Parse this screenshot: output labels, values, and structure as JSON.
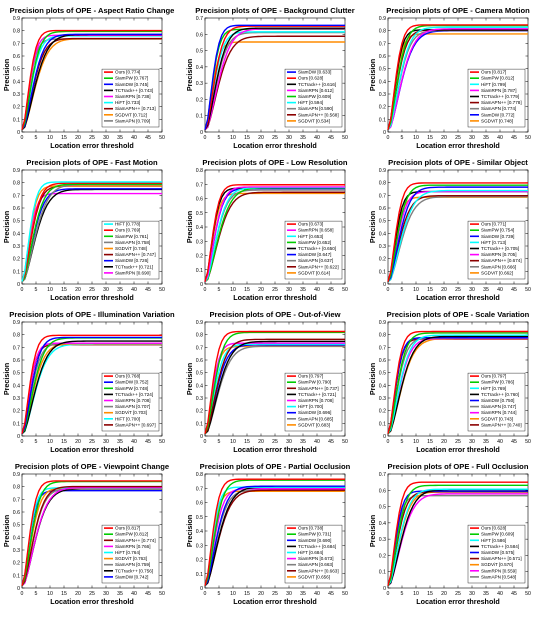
{
  "figure": {
    "x_ticks": [
      "0",
      "5",
      "10",
      "15",
      "20",
      "25",
      "30",
      "35",
      "40",
      "45",
      "50"
    ],
    "xlabel": "Location error threshold",
    "ylabel": "Precision",
    "colors": {
      "Ours": "#ff0000",
      "SiamPW": "#00cc00",
      "SiamDW": "#0000ff",
      "TCTrack++": "#000000",
      "SiamRPN": "#ff00ff",
      "HiFT": "#00ffff",
      "SiamAPN++": "#8b0000",
      "SGDViT": "#ff8c00",
      "SiamAPN": "#808080"
    }
  },
  "chart_data": [
    {
      "type": "line",
      "title": "Precision plots of OPE - Aspect Ratio Change",
      "ylim": [
        0,
        0.9
      ],
      "yticks": [
        "0",
        "0.1",
        "0.2",
        "0.3",
        "0.4",
        "0.5",
        "0.6",
        "0.7",
        "0.8",
        "0.9"
      ],
      "series": [
        {
          "name": "Ours",
          "label": "Ours [0.774]",
          "value": 0.774
        },
        {
          "name": "SiamPW",
          "label": "SiamPW [0.767]",
          "value": 0.767
        },
        {
          "name": "SiamDW",
          "label": "SiamDW [0.745]",
          "value": 0.745
        },
        {
          "name": "TCTrack++",
          "label": "TCTrack++ [0.743]",
          "value": 0.743
        },
        {
          "name": "SiamRPN",
          "label": "SiamRPN [0.738]",
          "value": 0.738
        },
        {
          "name": "HiFT",
          "label": "HiFT [0.733]",
          "value": 0.733
        },
        {
          "name": "SiamAPN++",
          "label": "SiamAPN++ [0.713]",
          "value": 0.713
        },
        {
          "name": "SGDViT",
          "label": "SGDViT [0.712]",
          "value": 0.712
        },
        {
          "name": "SiamAPN",
          "label": "SiamAPN [0.709]",
          "value": 0.709
        }
      ]
    },
    {
      "type": "line",
      "title": "Precision plots of OPE - Background Clutter",
      "ylim": [
        0,
        0.7
      ],
      "yticks": [
        "0",
        "0.1",
        "0.2",
        "0.3",
        "0.4",
        "0.5",
        "0.6",
        "0.7"
      ],
      "series": [
        {
          "name": "SiamDW",
          "label": "SiamDW [0.633]",
          "value": 0.633
        },
        {
          "name": "Ours",
          "label": "Ours [0.628]",
          "value": 0.628
        },
        {
          "name": "TCTrack++",
          "label": "TCTrack++ [0.616]",
          "value": 0.616
        },
        {
          "name": "SiamRPN",
          "label": "SiamRPN [0.612]",
          "value": 0.612
        },
        {
          "name": "SiamPW",
          "label": "SiamPW [0.609]",
          "value": 0.609
        },
        {
          "name": "HiFT",
          "label": "HiFT [0.594]",
          "value": 0.594
        },
        {
          "name": "SiamAPN",
          "label": "SiamAPN [0.590]",
          "value": 0.59
        },
        {
          "name": "SiamAPN++",
          "label": "SiamAPN++ [0.568]",
          "value": 0.568
        },
        {
          "name": "SGDViT",
          "label": "SGDViT [0.534]",
          "value": 0.534
        }
      ]
    },
    {
      "type": "line",
      "title": "Precision plots of OPE - Camera Motion",
      "ylim": [
        0,
        0.9
      ],
      "yticks": [
        "0",
        "0.1",
        "0.2",
        "0.3",
        "0.4",
        "0.5",
        "0.6",
        "0.7",
        "0.8",
        "0.9"
      ],
      "series": [
        {
          "name": "Ours",
          "label": "Ours [0.817]",
          "value": 0.817
        },
        {
          "name": "SiamPW",
          "label": "SiamPW [0.812]",
          "value": 0.812
        },
        {
          "name": "HiFT",
          "label": "HiFT [0.799]",
          "value": 0.799
        },
        {
          "name": "SiamRPN",
          "label": "SiamRPN [0.787]",
          "value": 0.787
        },
        {
          "name": "TCTrack++",
          "label": "TCTrack++ [0.779]",
          "value": 0.779
        },
        {
          "name": "SiamAPN++",
          "label": "SiamAPN++ [0.778]",
          "value": 0.778
        },
        {
          "name": "SiamAPN",
          "label": "SiamAPN [0.774]",
          "value": 0.774
        },
        {
          "name": "SiamDW",
          "label": "SiamDW [0.772]",
          "value": 0.772
        },
        {
          "name": "SGDViT",
          "label": "SGDViT [0.748]",
          "value": 0.748
        }
      ]
    },
    {
      "type": "line",
      "title": "Precision plots of OPE - Fast Motion",
      "ylim": [
        0,
        0.9
      ],
      "yticks": [
        "0",
        "0.1",
        "0.2",
        "0.3",
        "0.4",
        "0.5",
        "0.6",
        "0.7",
        "0.8",
        "0.9"
      ],
      "series": [
        {
          "name": "HiFT",
          "label": "HiFT [0.778]",
          "value": 0.778
        },
        {
          "name": "Ours",
          "label": "Ours [0.769]",
          "value": 0.769
        },
        {
          "name": "SiamPW",
          "label": "SiamPW [0.761]",
          "value": 0.761
        },
        {
          "name": "SiamAPN",
          "label": "SiamAPN [0.758]",
          "value": 0.758
        },
        {
          "name": "SGDViT",
          "label": "SGDViT [0.748]",
          "value": 0.748
        },
        {
          "name": "SiamAPN++",
          "label": "SiamAPN++ [0.747]",
          "value": 0.747
        },
        {
          "name": "SiamDW",
          "label": "SiamDW [0.726]",
          "value": 0.726
        },
        {
          "name": "TCTrack++",
          "label": "TCTrack++ [0.721]",
          "value": 0.721
        },
        {
          "name": "SiamRPN",
          "label": "SiamRPN [0.690]",
          "value": 0.69
        }
      ]
    },
    {
      "type": "line",
      "title": "Precision plots of OPE - Low Resolution",
      "ylim": [
        0,
        0.8
      ],
      "yticks": [
        "0",
        "0.1",
        "0.2",
        "0.3",
        "0.4",
        "0.5",
        "0.6",
        "0.7",
        "0.8"
      ],
      "series": [
        {
          "name": "Ours",
          "label": "Ours [0.673]",
          "value": 0.673
        },
        {
          "name": "SiamRPN",
          "label": "SiamRPN [0.658]",
          "value": 0.658
        },
        {
          "name": "HiFT",
          "label": "HiFT [0.653]",
          "value": 0.653
        },
        {
          "name": "SiamPW",
          "label": "SiamPW [0.652]",
          "value": 0.652
        },
        {
          "name": "TCTrack++",
          "label": "TCTrack++ [0.650]",
          "value": 0.65
        },
        {
          "name": "SiamDW",
          "label": "SiamDW [0.647]",
          "value": 0.647
        },
        {
          "name": "SiamAPN",
          "label": "SiamAPN [0.637]",
          "value": 0.637
        },
        {
          "name": "SiamAPN++",
          "label": "SiamAPN++ [0.622]",
          "value": 0.622
        },
        {
          "name": "SGDViT",
          "label": "SGDViT [0.614]",
          "value": 0.614
        }
      ]
    },
    {
      "type": "line",
      "title": "Precision plots of OPE - Similar Object",
      "ylim": [
        0,
        0.9
      ],
      "yticks": [
        "0",
        "0.1",
        "0.2",
        "0.3",
        "0.4",
        "0.5",
        "0.6",
        "0.7",
        "0.8",
        "0.9"
      ],
      "series": [
        {
          "name": "Ours",
          "label": "Ours [0.771]",
          "value": 0.771
        },
        {
          "name": "SiamPW",
          "label": "SiamPW [0.754]",
          "value": 0.754
        },
        {
          "name": "SiamDW",
          "label": "SiamDW [0.739]",
          "value": 0.739
        },
        {
          "name": "HiFT",
          "label": "HiFT [0.713]",
          "value": 0.713
        },
        {
          "name": "TCTrack++",
          "label": "TCTrack++ [0.705]",
          "value": 0.705
        },
        {
          "name": "SiamRPN",
          "label": "SiamRPN [0.705]",
          "value": 0.705
        },
        {
          "name": "SiamAPN++",
          "label": "SiamAPN++ [0.674]",
          "value": 0.674
        },
        {
          "name": "SiamAPN",
          "label": "SiamAPN [0.666]",
          "value": 0.666
        },
        {
          "name": "SGDViT",
          "label": "SGDViT [0.662]",
          "value": 0.662
        }
      ]
    },
    {
      "type": "line",
      "title": "Precision plots of OPE - Illumination Variation",
      "ylim": [
        0,
        0.9
      ],
      "yticks": [
        "0",
        "0.1",
        "0.2",
        "0.3",
        "0.4",
        "0.5",
        "0.6",
        "0.7",
        "0.8",
        "0.9"
      ],
      "series": [
        {
          "name": "Ours",
          "label": "Ours [0.768]",
          "value": 0.768
        },
        {
          "name": "SiamDW",
          "label": "SiamDW [0.752]",
          "value": 0.752
        },
        {
          "name": "SiamPW",
          "label": "SiamPW [0.748]",
          "value": 0.748
        },
        {
          "name": "TCTrack++",
          "label": "TCTrack++ [0.724]",
          "value": 0.724
        },
        {
          "name": "SiamRPN",
          "label": "SiamRPN [0.708]",
          "value": 0.708
        },
        {
          "name": "SiamAPN",
          "label": "SiamAPN [0.707]",
          "value": 0.707
        },
        {
          "name": "SGDViT",
          "label": "SGDViT [0.703]",
          "value": 0.703
        },
        {
          "name": "HiFT",
          "label": "HiFT [0.700]",
          "value": 0.7
        },
        {
          "name": "SiamAPN++",
          "label": "SiamAPN++ [0.697]",
          "value": 0.697
        }
      ]
    },
    {
      "type": "line",
      "title": "Precision plots of OPE - Out-of-View",
      "ylim": [
        0,
        0.9
      ],
      "yticks": [
        "0",
        "0.1",
        "0.2",
        "0.3",
        "0.4",
        "0.5",
        "0.6",
        "0.7",
        "0.8",
        "0.9"
      ],
      "series": [
        {
          "name": "Ours",
          "label": "Ours [0.797]",
          "value": 0.797
        },
        {
          "name": "SiamPW",
          "label": "SiamPW [0.790]",
          "value": 0.79
        },
        {
          "name": "SiamAPN++",
          "label": "SiamAPN++ [0.737]",
          "value": 0.737
        },
        {
          "name": "TCTrack++",
          "label": "TCTrack++ [0.721]",
          "value": 0.721
        },
        {
          "name": "SiamRPN",
          "label": "SiamRPN [0.708]",
          "value": 0.708
        },
        {
          "name": "HiFT",
          "label": "HiFT [0.700]",
          "value": 0.7
        },
        {
          "name": "SiamDW",
          "label": "SiamDW [0.696]",
          "value": 0.696
        },
        {
          "name": "SiamAPN",
          "label": "SiamAPN [0.685]",
          "value": 0.685
        },
        {
          "name": "SGDViT",
          "label": "SGDViT [0.683]",
          "value": 0.683
        }
      ]
    },
    {
      "type": "line",
      "title": "Precision plots of OPE - Scale Variation",
      "ylim": [
        0,
        0.9
      ],
      "yticks": [
        "0",
        "0.1",
        "0.2",
        "0.3",
        "0.4",
        "0.5",
        "0.6",
        "0.7",
        "0.8",
        "0.9"
      ],
      "series": [
        {
          "name": "Ours",
          "label": "Ours [0.797]",
          "value": 0.797
        },
        {
          "name": "SiamPW",
          "label": "SiamPW [0.786]",
          "value": 0.786
        },
        {
          "name": "HiFT",
          "label": "HiFT [0.769]",
          "value": 0.769
        },
        {
          "name": "TCTrack++",
          "label": "TCTrack++ [0.760]",
          "value": 0.76
        },
        {
          "name": "SiamDW",
          "label": "SiamDW [0.750]",
          "value": 0.75
        },
        {
          "name": "SiamAPN",
          "label": "SiamAPN [0.747]",
          "value": 0.747
        },
        {
          "name": "SiamRPN",
          "label": "SiamRPN [0.744]",
          "value": 0.744
        },
        {
          "name": "SGDViT",
          "label": "SGDViT [0.743]",
          "value": 0.743
        },
        {
          "name": "SiamAPN++",
          "label": "SiamAPN++ [0.740]",
          "value": 0.74
        }
      ]
    },
    {
      "type": "line",
      "title": "Precision plots of OPE - Viewpoint Change",
      "ylim": [
        0,
        0.9
      ],
      "yticks": [
        "0",
        "0.1",
        "0.2",
        "0.3",
        "0.4",
        "0.5",
        "0.6",
        "0.7",
        "0.8",
        "0.9"
      ],
      "series": [
        {
          "name": "Ours",
          "label": "Ours [0.817]",
          "value": 0.817
        },
        {
          "name": "SiamPW",
          "label": "SiamPW [0.812]",
          "value": 0.812
        },
        {
          "name": "SiamAPN++",
          "label": "SiamAPN++ [0.774]",
          "value": 0.774
        },
        {
          "name": "SiamRPN",
          "label": "SiamRPN [0.766]",
          "value": 0.766
        },
        {
          "name": "HiFT",
          "label": "HiFT [0.764]",
          "value": 0.764
        },
        {
          "name": "SGDViT",
          "label": "SGDViT [0.763]",
          "value": 0.763
        },
        {
          "name": "SiamAPN",
          "label": "SiamAPN [0.759]",
          "value": 0.759
        },
        {
          "name": "TCTrack++",
          "label": "TCTrack++ [0.756]",
          "value": 0.756
        },
        {
          "name": "SiamDW",
          "label": "SiamDW [0.742]",
          "value": 0.742
        }
      ]
    },
    {
      "type": "line",
      "title": "Precision plots of OPE - Partial Occlusion",
      "ylim": [
        0,
        0.8
      ],
      "yticks": [
        "0",
        "0.1",
        "0.2",
        "0.3",
        "0.4",
        "0.5",
        "0.6",
        "0.7",
        "0.8"
      ],
      "series": [
        {
          "name": "Ours",
          "label": "Ours [0.738]",
          "value": 0.738
        },
        {
          "name": "SiamPW",
          "label": "SiamPW [0.731]",
          "value": 0.731
        },
        {
          "name": "SiamDW",
          "label": "SiamDW [0.690]",
          "value": 0.69
        },
        {
          "name": "TCTrack++",
          "label": "TCTrack++ [0.684]",
          "value": 0.684
        },
        {
          "name": "HiFT",
          "label": "HiFT [0.684]",
          "value": 0.684
        },
        {
          "name": "SiamRPN",
          "label": "SiamRPN [0.673]",
          "value": 0.673
        },
        {
          "name": "SiamAPN",
          "label": "SiamAPN [0.663]",
          "value": 0.663
        },
        {
          "name": "SiamAPN++",
          "label": "SiamAPN++ [0.663]",
          "value": 0.663
        },
        {
          "name": "SGDViT",
          "label": "SGDViT [0.656]",
          "value": 0.656
        }
      ]
    },
    {
      "type": "line",
      "title": "Precision plots of OPE - Full Occlusion",
      "ylim": [
        0,
        0.7
      ],
      "yticks": [
        "0",
        "0.1",
        "0.2",
        "0.3",
        "0.4",
        "0.5",
        "0.6",
        "0.7"
      ],
      "series": [
        {
          "name": "Ours",
          "label": "Ours [0.628]",
          "value": 0.628
        },
        {
          "name": "SiamPW",
          "label": "SiamPW [0.609]",
          "value": 0.609
        },
        {
          "name": "HiFT",
          "label": "HiFT [0.586]",
          "value": 0.586
        },
        {
          "name": "TCTrack++",
          "label": "TCTrack++ [0.584]",
          "value": 0.584
        },
        {
          "name": "SiamDW",
          "label": "SiamDW [0.575]",
          "value": 0.575
        },
        {
          "name": "SiamAPN++",
          "label": "SiamAPN++ [0.571]",
          "value": 0.571
        },
        {
          "name": "SGDViT",
          "label": "SGDViT [0.570]",
          "value": 0.57
        },
        {
          "name": "SiamRPN",
          "label": "SiamRPN [0.559]",
          "value": 0.559
        },
        {
          "name": "SiamAPN",
          "label": "SiamAPN [0.548]",
          "value": 0.548
        }
      ]
    }
  ]
}
